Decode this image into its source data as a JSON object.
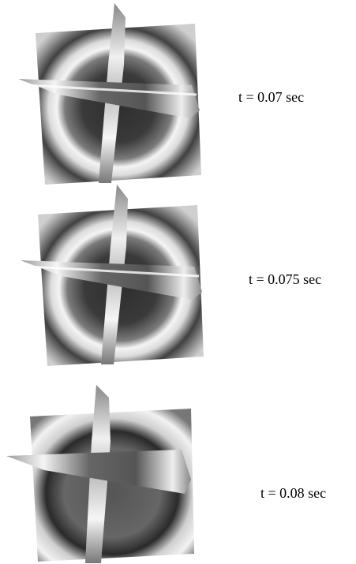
{
  "panels": [
    {
      "label": "t = 0.07 sec"
    },
    {
      "label": "t = 0.075 sec"
    },
    {
      "label": "t = 0.08 sec"
    }
  ]
}
